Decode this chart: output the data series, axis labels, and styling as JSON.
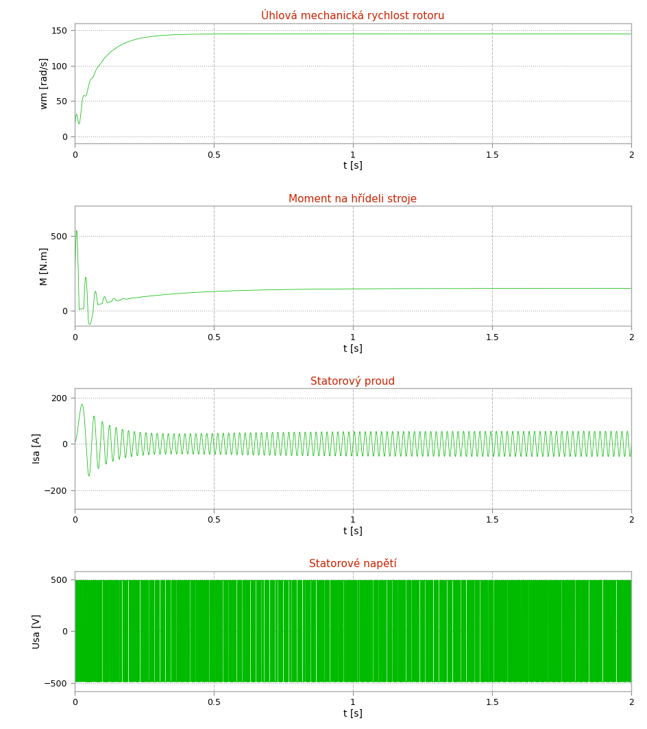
{
  "title1": "Úhlová mechanická rychlost rotoru",
  "title2": "Moment na hřídeli stroje",
  "title3": "Statorový proud",
  "title4": "Statorové napětí",
  "xlabel": "t [s]",
  "ylabel1": "wm [rad/s]",
  "ylabel2": "M [N.m]",
  "ylabel3": "Isa [A]",
  "ylabel4": "Usa [V]",
  "xlim": [
    0,
    2
  ],
  "ylim1": [
    -10,
    160
  ],
  "ylim2": [
    -100,
    700
  ],
  "ylim3": [
    -280,
    240
  ],
  "ylim4": [
    -580,
    580
  ],
  "yticks1": [
    0,
    50,
    100,
    150
  ],
  "yticks2": [
    0,
    500
  ],
  "yticks3": [
    -200,
    0,
    200
  ],
  "yticks4": [
    -500,
    0,
    500
  ],
  "xticks": [
    0,
    0.5,
    1.0,
    1.5,
    2.0
  ],
  "line_color": "#00BB00",
  "title_color": "#CC2200",
  "grid_color_h": "#AAAAAA",
  "grid_color_v": "#BBBBBB",
  "bg_color": "#FFFFFF",
  "t_end": 2.0,
  "fs": 50000
}
